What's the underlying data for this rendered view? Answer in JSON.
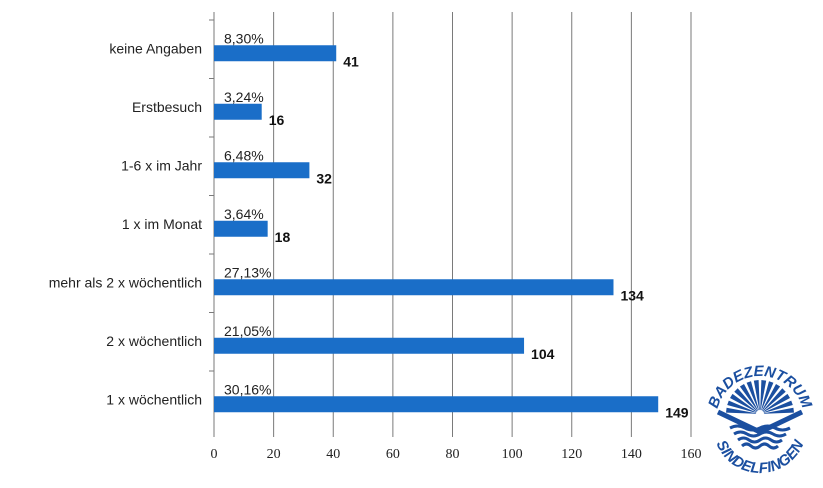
{
  "chart_data": {
    "type": "bar",
    "orientation": "horizontal",
    "categories": [
      "keine Angaben",
      "Erstbesuch",
      "1-6 x im Jahr",
      "1 x im Monat",
      "mehr als 2 x wöchentlich",
      "2 x wöchentlich",
      "1 x wöchentlich"
    ],
    "values": [
      41,
      16,
      32,
      18,
      134,
      104,
      149
    ],
    "percent_labels": [
      "8,30%",
      "3,24%",
      "6,48%",
      "3,64%",
      "27,13%",
      "21,05%",
      "30,16%"
    ],
    "value_labels": [
      "41",
      "16",
      "32",
      "18",
      "134",
      "104",
      "149"
    ],
    "xlim": [
      0,
      160
    ],
    "xticks": [
      0,
      20,
      40,
      60,
      80,
      100,
      120,
      140,
      160
    ],
    "xtick_labels": [
      "0",
      "20",
      "40",
      "60",
      "80",
      "100",
      "120",
      "140",
      "160"
    ],
    "grid": "vertical",
    "legend": "none",
    "bar_color": "#1a6ec8"
  },
  "logo": {
    "text_top": "BADEZENTRUM",
    "text_bottom": "SINDELFINGEN",
    "color": "#1b4fa0"
  }
}
